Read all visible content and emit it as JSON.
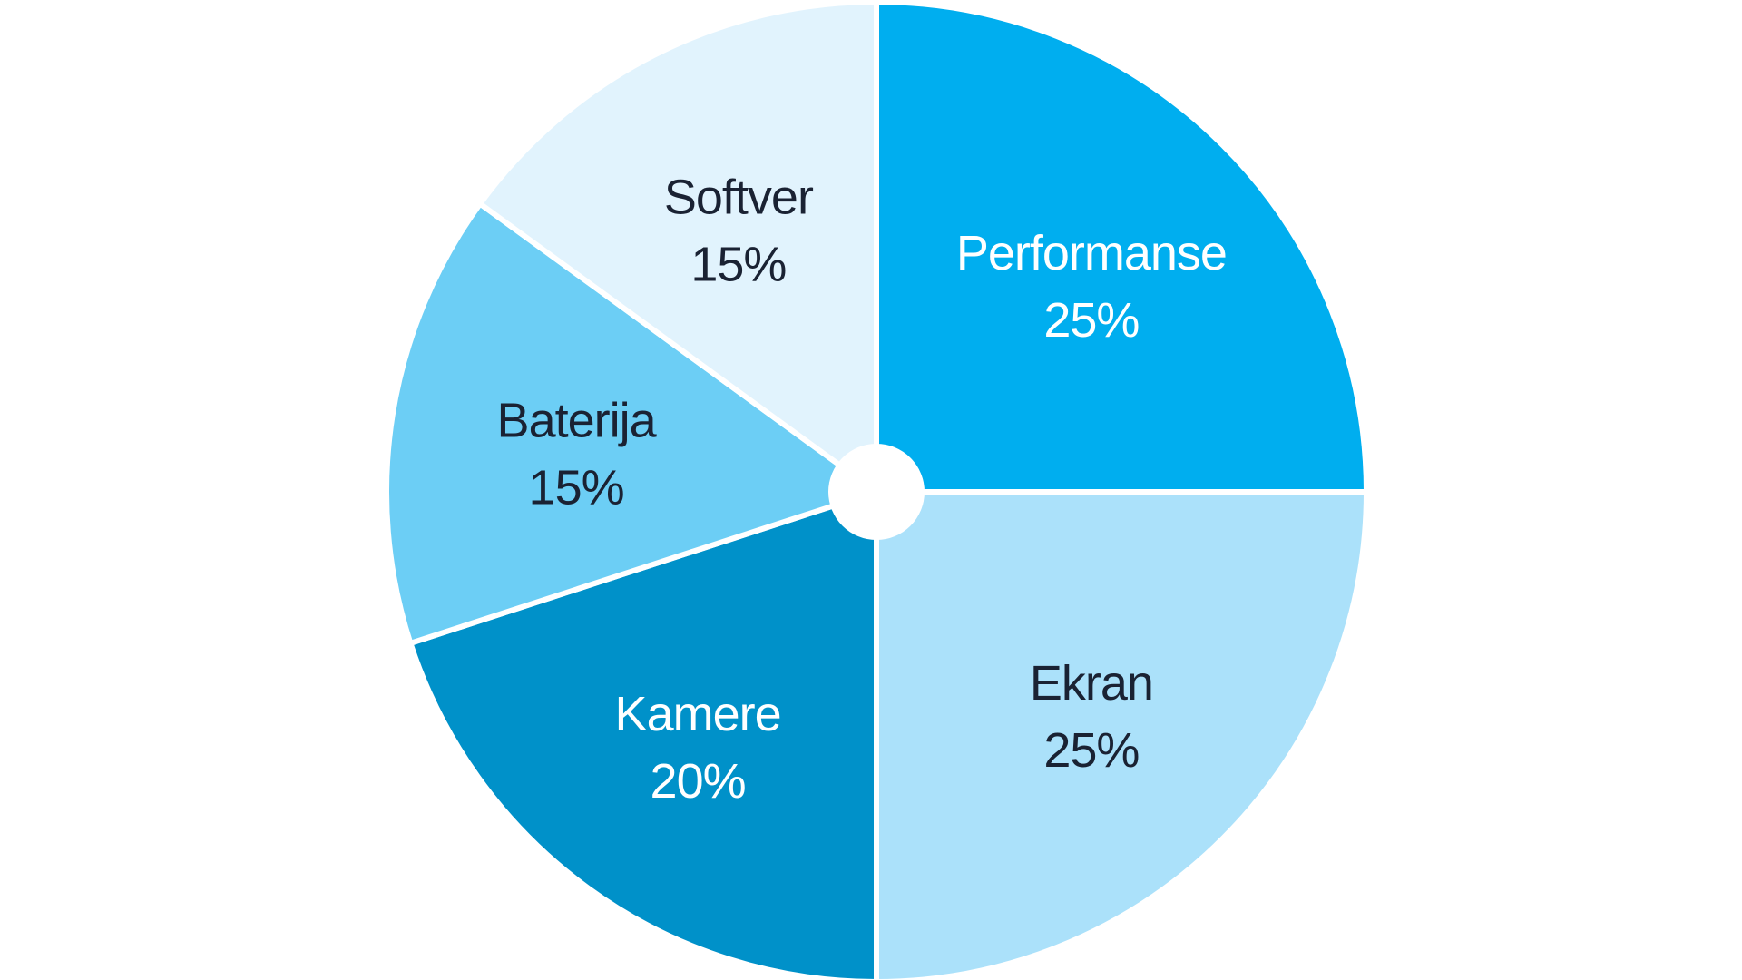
{
  "chart_data": {
    "type": "pie",
    "title": "",
    "slices": [
      {
        "label": "Performanse",
        "value": 25,
        "value_label": "25%",
        "color": "#00aeef",
        "text_color": "#ffffff"
      },
      {
        "label": "Ekran",
        "value": 25,
        "value_label": "25%",
        "color": "#abe1fa",
        "text_color": "#1a2233"
      },
      {
        "label": "Kamere",
        "value": 20,
        "value_label": "20%",
        "color": "#0091c9",
        "text_color": "#ffffff"
      },
      {
        "label": "Baterija",
        "value": 15,
        "value_label": "15%",
        "color": "#6ccef5",
        "text_color": "#1a2233"
      },
      {
        "label": "Softver",
        "value": 15,
        "value_label": "15%",
        "color": "#e1f3fd",
        "text_color": "#1a2233"
      }
    ],
    "start_angle": "12 o'clock",
    "direction": "clockwise",
    "center_hole": true,
    "legend": "none"
  }
}
